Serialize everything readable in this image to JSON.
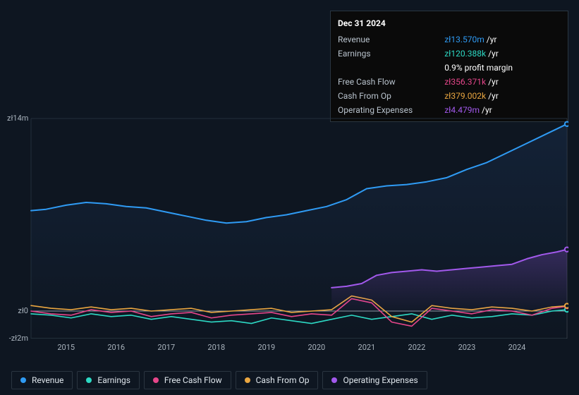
{
  "currency_prefix": "zł",
  "tooltip": {
    "date": "Dec 31 2024",
    "rows": [
      {
        "label": "Revenue",
        "value": "zł13.570m",
        "unit": "/yr",
        "color": "#2f9bf4"
      },
      {
        "label": "Earnings",
        "value": "zł120.388k",
        "unit": "/yr",
        "color": "#2dd9c4"
      },
      {
        "label": "",
        "value": "0.9%",
        "unit": "profit margin",
        "color": "#ffffff"
      },
      {
        "label": "Free Cash Flow",
        "value": "zł356.371k",
        "unit": "/yr",
        "color": "#e6468a"
      },
      {
        "label": "Cash From Op",
        "value": "zł379.002k",
        "unit": "/yr",
        "color": "#eaa640"
      },
      {
        "label": "Operating Expenses",
        "value": "zł4.479m",
        "unit": "/yr",
        "color": "#a259ec"
      }
    ]
  },
  "chart": {
    "type": "area-line",
    "background": "#0e1621",
    "plot_fill_gradient": [
      "rgba(24,44,73,0.55)",
      "rgba(24,44,73,0.0)"
    ],
    "grid_color": "#232f3b",
    "axis_color": "#232f3b",
    "zero_line_color": "#97a2ad",
    "font_color": "#a8b2bc",
    "x": {
      "start": 2014.3,
      "end": 2025.0,
      "ticks": [
        2015,
        2016,
        2017,
        2018,
        2019,
        2020,
        2021,
        2022,
        2023,
        2024
      ]
    },
    "y": {
      "min": -2,
      "max": 14,
      "unit": "m",
      "ticks": [
        {
          "v": 14,
          "label": "zł14m"
        },
        {
          "v": 0,
          "label": "zł0"
        },
        {
          "v": -2,
          "label": "-zł2m"
        }
      ]
    },
    "series": [
      {
        "name": "Revenue",
        "color": "#2f9bf4",
        "width": 2,
        "fill": true,
        "pts": [
          [
            2014.3,
            7.3
          ],
          [
            2014.6,
            7.4
          ],
          [
            2015,
            7.7
          ],
          [
            2015.4,
            7.9
          ],
          [
            2015.8,
            7.8
          ],
          [
            2016.2,
            7.6
          ],
          [
            2016.6,
            7.5
          ],
          [
            2017.0,
            7.2
          ],
          [
            2017.4,
            6.9
          ],
          [
            2017.8,
            6.6
          ],
          [
            2018.2,
            6.4
          ],
          [
            2018.6,
            6.5
          ],
          [
            2019.0,
            6.8
          ],
          [
            2019.4,
            7.0
          ],
          [
            2019.8,
            7.3
          ],
          [
            2020.2,
            7.6
          ],
          [
            2020.6,
            8.1
          ],
          [
            2021.0,
            8.9
          ],
          [
            2021.4,
            9.1
          ],
          [
            2021.8,
            9.2
          ],
          [
            2022.2,
            9.4
          ],
          [
            2022.6,
            9.7
          ],
          [
            2023.0,
            10.3
          ],
          [
            2023.4,
            10.8
          ],
          [
            2023.8,
            11.5
          ],
          [
            2024.2,
            12.2
          ],
          [
            2024.6,
            12.9
          ],
          [
            2025.0,
            13.6
          ]
        ]
      },
      {
        "name": "Earnings",
        "color": "#2dd9c4",
        "width": 1.6,
        "pts": [
          [
            2014.3,
            -0.2
          ],
          [
            2014.7,
            -0.3
          ],
          [
            2015.1,
            -0.5
          ],
          [
            2015.5,
            -0.2
          ],
          [
            2015.9,
            -0.4
          ],
          [
            2016.3,
            -0.3
          ],
          [
            2016.7,
            -0.6
          ],
          [
            2017.1,
            -0.4
          ],
          [
            2017.5,
            -0.6
          ],
          [
            2017.9,
            -0.8
          ],
          [
            2018.3,
            -0.7
          ],
          [
            2018.7,
            -0.9
          ],
          [
            2019.1,
            -0.5
          ],
          [
            2019.5,
            -0.7
          ],
          [
            2019.9,
            -0.9
          ],
          [
            2020.3,
            -0.6
          ],
          [
            2020.7,
            -0.3
          ],
          [
            2021.1,
            -0.6
          ],
          [
            2021.5,
            -0.4
          ],
          [
            2021.9,
            -0.2
          ],
          [
            2022.3,
            -0.6
          ],
          [
            2022.7,
            -0.3
          ],
          [
            2023.1,
            -0.5
          ],
          [
            2023.5,
            -0.4
          ],
          [
            2023.9,
            -0.2
          ],
          [
            2024.3,
            -0.3
          ],
          [
            2024.7,
            0.0
          ],
          [
            2025.0,
            0.1
          ]
        ]
      },
      {
        "name": "Free Cash Flow",
        "color": "#e6468a",
        "width": 1.6,
        "pts": [
          [
            2014.3,
            0.0
          ],
          [
            2014.7,
            -0.2
          ],
          [
            2015.1,
            -0.3
          ],
          [
            2015.5,
            0.1
          ],
          [
            2015.9,
            -0.1
          ],
          [
            2016.3,
            0.0
          ],
          [
            2016.7,
            -0.4
          ],
          [
            2017.1,
            -0.2
          ],
          [
            2017.5,
            -0.1
          ],
          [
            2017.9,
            -0.5
          ],
          [
            2018.3,
            -0.3
          ],
          [
            2018.7,
            -0.2
          ],
          [
            2019.1,
            -0.1
          ],
          [
            2019.5,
            -0.4
          ],
          [
            2019.9,
            -0.2
          ],
          [
            2020.3,
            -0.3
          ],
          [
            2020.7,
            0.9
          ],
          [
            2021.1,
            0.6
          ],
          [
            2021.5,
            -0.8
          ],
          [
            2021.9,
            -1.1
          ],
          [
            2022.3,
            0.2
          ],
          [
            2022.7,
            0.0
          ],
          [
            2023.1,
            -0.2
          ],
          [
            2023.5,
            0.1
          ],
          [
            2023.9,
            0.0
          ],
          [
            2024.3,
            -0.3
          ],
          [
            2024.7,
            0.2
          ],
          [
            2025.0,
            0.35
          ]
        ]
      },
      {
        "name": "Cash From Op",
        "color": "#eaa640",
        "width": 1.6,
        "pts": [
          [
            2014.3,
            0.4
          ],
          [
            2014.7,
            0.2
          ],
          [
            2015.1,
            0.1
          ],
          [
            2015.5,
            0.3
          ],
          [
            2015.9,
            0.1
          ],
          [
            2016.3,
            0.2
          ],
          [
            2016.7,
            0.0
          ],
          [
            2017.1,
            0.1
          ],
          [
            2017.5,
            0.2
          ],
          [
            2017.9,
            -0.1
          ],
          [
            2018.3,
            0.0
          ],
          [
            2018.7,
            0.1
          ],
          [
            2019.1,
            0.2
          ],
          [
            2019.5,
            -0.1
          ],
          [
            2019.9,
            0.0
          ],
          [
            2020.3,
            0.1
          ],
          [
            2020.7,
            1.1
          ],
          [
            2021.1,
            0.8
          ],
          [
            2021.5,
            -0.4
          ],
          [
            2021.9,
            -0.8
          ],
          [
            2022.3,
            0.4
          ],
          [
            2022.7,
            0.2
          ],
          [
            2023.1,
            0.1
          ],
          [
            2023.5,
            0.3
          ],
          [
            2023.9,
            0.2
          ],
          [
            2024.3,
            0.0
          ],
          [
            2024.7,
            0.3
          ],
          [
            2025.0,
            0.38
          ]
        ]
      },
      {
        "name": "Operating Expenses",
        "color": "#a259ec",
        "width": 2,
        "fill_alpha": 0.12,
        "start": 2020.3,
        "pts": [
          [
            2020.3,
            1.7
          ],
          [
            2020.6,
            1.8
          ],
          [
            2020.9,
            2.0
          ],
          [
            2021.2,
            2.6
          ],
          [
            2021.5,
            2.8
          ],
          [
            2021.8,
            2.9
          ],
          [
            2022.1,
            3.0
          ],
          [
            2022.4,
            2.9
          ],
          [
            2022.7,
            3.0
          ],
          [
            2023.0,
            3.1
          ],
          [
            2023.3,
            3.2
          ],
          [
            2023.6,
            3.3
          ],
          [
            2023.9,
            3.4
          ],
          [
            2024.2,
            3.8
          ],
          [
            2024.5,
            4.1
          ],
          [
            2024.8,
            4.3
          ],
          [
            2025.0,
            4.48
          ]
        ]
      }
    ]
  },
  "legend": [
    {
      "label": "Revenue",
      "color": "#2f9bf4"
    },
    {
      "label": "Earnings",
      "color": "#2dd9c4"
    },
    {
      "label": "Free Cash Flow",
      "color": "#e6468a"
    },
    {
      "label": "Cash From Op",
      "color": "#eaa640"
    },
    {
      "label": "Operating Expenses",
      "color": "#a259ec"
    }
  ]
}
